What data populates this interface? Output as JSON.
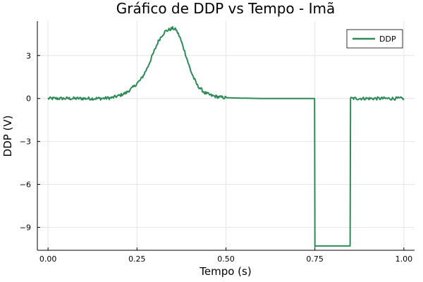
{
  "chart_data": {
    "type": "line",
    "title": "Gráfico de DDP vs Tempo - Imã",
    "xlabel": "Tempo (s)",
    "ylabel": "DDP (V)",
    "xlim": [
      -0.03,
      1.03
    ],
    "ylim": [
      -10.6,
      5.4
    ],
    "xticks": [
      0.0,
      0.25,
      0.5,
      0.75,
      1.0
    ],
    "xtick_labels": [
      "0.00",
      "0.25",
      "0.50",
      "0.75",
      "1.00"
    ],
    "yticks": [
      3,
      0,
      -3,
      -6,
      -9
    ],
    "ytick_labels": [
      "3",
      "0",
      "−3",
      "−6",
      "−9"
    ],
    "grid": true,
    "legend_position": "top-right",
    "series": [
      {
        "name": "DDP",
        "color": "#2e8b57",
        "x": [
          0.0,
          0.05,
          0.1,
          0.15,
          0.18,
          0.2,
          0.22,
          0.24,
          0.26,
          0.27,
          0.28,
          0.29,
          0.3,
          0.31,
          0.32,
          0.33,
          0.34,
          0.35,
          0.36,
          0.37,
          0.38,
          0.39,
          0.4,
          0.41,
          0.42,
          0.44,
          0.46,
          0.48,
          0.5,
          0.55,
          0.6,
          0.65,
          0.7,
          0.749,
          0.75,
          0.751,
          0.8,
          0.849,
          0.85,
          0.851,
          0.9,
          0.95,
          1.0
        ],
        "y": [
          0.0,
          0.0,
          0.0,
          0.0,
          0.05,
          0.2,
          0.4,
          0.8,
          1.3,
          1.7,
          2.2,
          2.8,
          3.4,
          4.0,
          4.4,
          4.7,
          4.8,
          4.9,
          4.8,
          4.3,
          3.6,
          2.8,
          2.0,
          1.4,
          0.9,
          0.4,
          0.2,
          0.1,
          0.05,
          0.02,
          0.0,
          0.0,
          0.0,
          0.0,
          -10.3,
          -10.3,
          -10.3,
          -10.3,
          0.0,
          0.0,
          0.0,
          0.0,
          0.0
        ]
      }
    ]
  }
}
